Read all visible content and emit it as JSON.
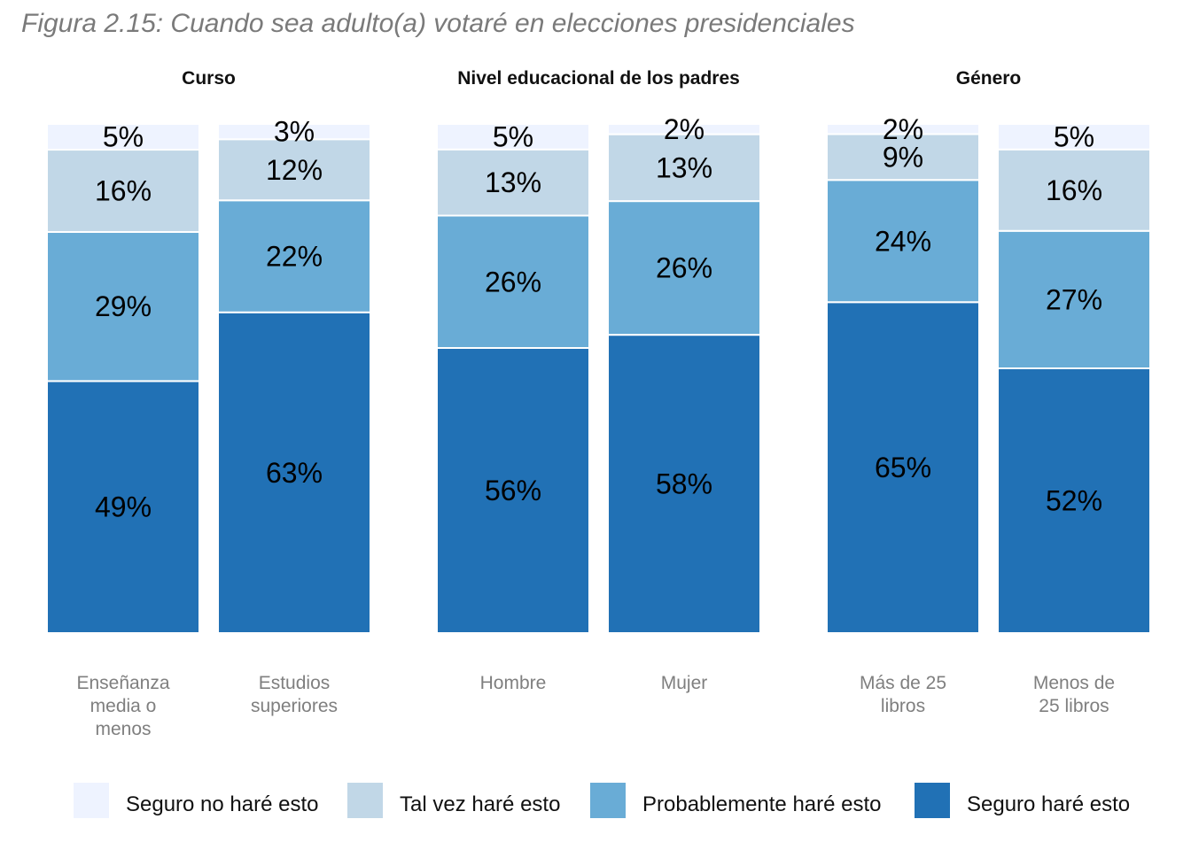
{
  "title": "Figura 2.15: Cuando sea adulto(a) votaré en elecciones presidenciales",
  "chart_data": {
    "type": "bar",
    "stacked": true,
    "percent_axis": true,
    "legend_position": "bottom",
    "series": [
      {
        "name": "Seguro no haré esto",
        "color": "#eef3ff"
      },
      {
        "name": "Tal vez haré esto",
        "color": "#c1d7e7"
      },
      {
        "name": "Probablemente haré esto",
        "color": "#69acd6"
      },
      {
        "name": "Seguro haré esto",
        "color": "#2171b5"
      }
    ],
    "facets": [
      {
        "title": "Curso",
        "bars": [
          {
            "label": [
              "Enseñanza",
              "media o",
              "menos"
            ],
            "values": [
              5,
              16,
              29,
              49
            ],
            "labels": [
              "5%",
              "16%",
              "29%",
              "49%"
            ]
          },
          {
            "label": [
              "Estudios",
              "superiores"
            ],
            "values": [
              3,
              12,
              22,
              63
            ],
            "labels": [
              "3%",
              "12%",
              "22%",
              "63%"
            ]
          }
        ]
      },
      {
        "title": "Nivel educacional de los padres",
        "bars": [
          {
            "label": [
              "Hombre"
            ],
            "values": [
              5,
              13,
              26,
              56
            ],
            "labels": [
              "5%",
              "13%",
              "26%",
              "56%"
            ]
          },
          {
            "label": [
              "Mujer"
            ],
            "values": [
              2,
              13,
              26,
              58
            ],
            "labels": [
              "2%",
              "13%",
              "26%",
              "58%"
            ]
          }
        ]
      },
      {
        "title": "Género",
        "bars": [
          {
            "label": [
              "Más de 25",
              "libros"
            ],
            "values": [
              2,
              9,
              24,
              65
            ],
            "labels": [
              "2%",
              "9%",
              "24%",
              "65%"
            ]
          },
          {
            "label": [
              "Menos de",
              "25 libros"
            ],
            "values": [
              5,
              16,
              27,
              52
            ],
            "labels": [
              "5%",
              "16%",
              "27%",
              "52%"
            ]
          }
        ]
      }
    ]
  }
}
